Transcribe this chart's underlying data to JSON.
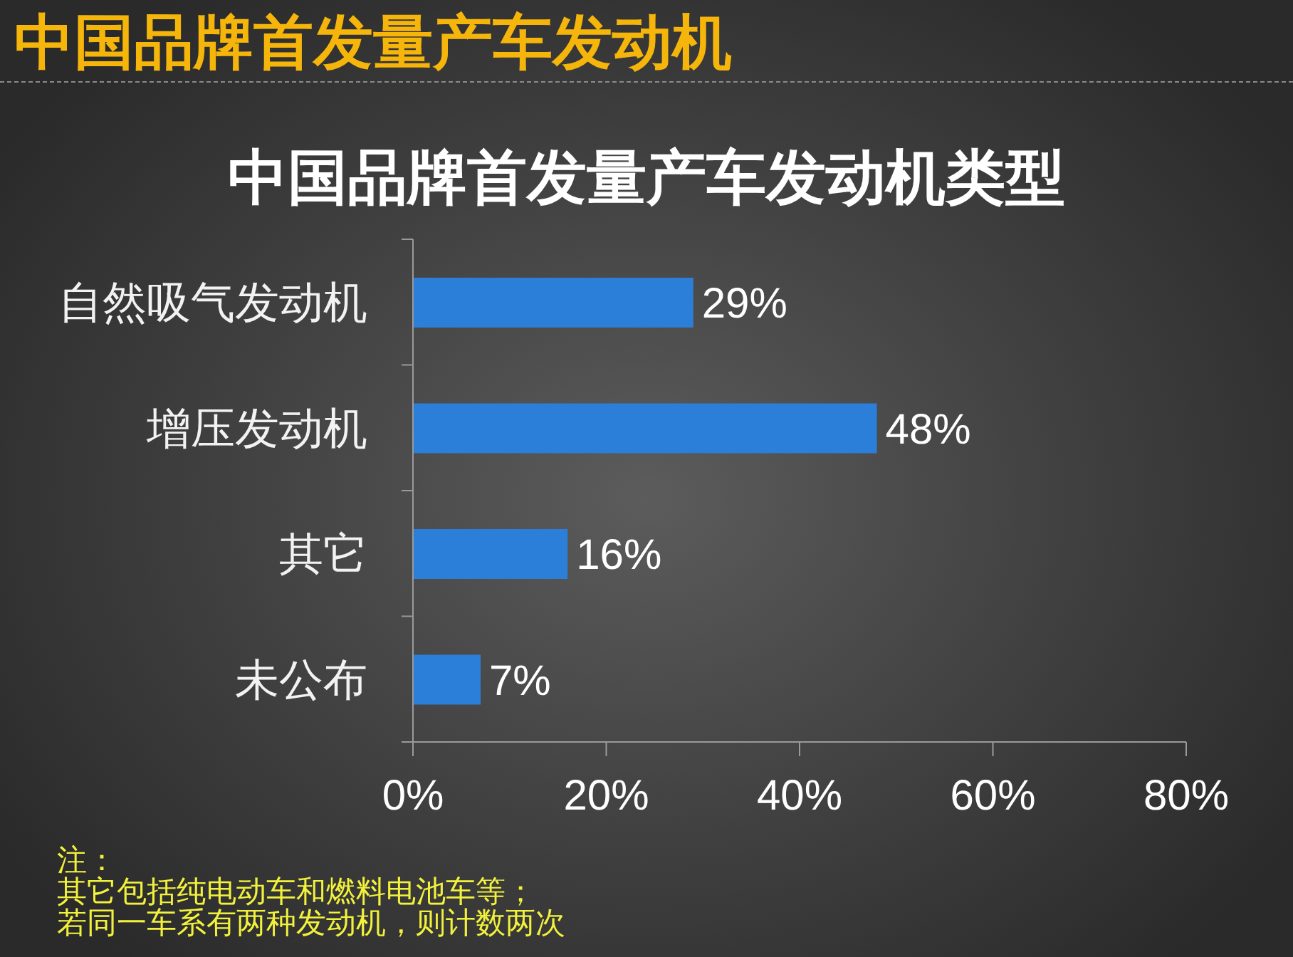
{
  "chart_data": {
    "type": "bar",
    "orientation": "horizontal",
    "title": "中国品牌首发量产车发动机",
    "subtitle": "中国品牌首发量产车发动机类型",
    "categories": [
      "自然吸气发动机",
      "增压发动机",
      "其它",
      "未公布"
    ],
    "values": [
      29,
      48,
      16,
      7
    ],
    "value_labels": [
      "29%",
      "48%",
      "16%",
      "7%"
    ],
    "color": "#2b7fd8",
    "xlim": [
      0,
      80
    ],
    "xticks": [
      {
        "value": 0,
        "label": "0%"
      },
      {
        "value": 20,
        "label": "20%"
      },
      {
        "value": 40,
        "label": "40%"
      },
      {
        "value": 60,
        "label": "60%"
      },
      {
        "value": 80,
        "label": "80%"
      }
    ],
    "annotations": [
      "注：",
      "其它包括纯电动车和燃料电池车等；",
      "若同一车系有两种发动机，则计数两次"
    ]
  }
}
